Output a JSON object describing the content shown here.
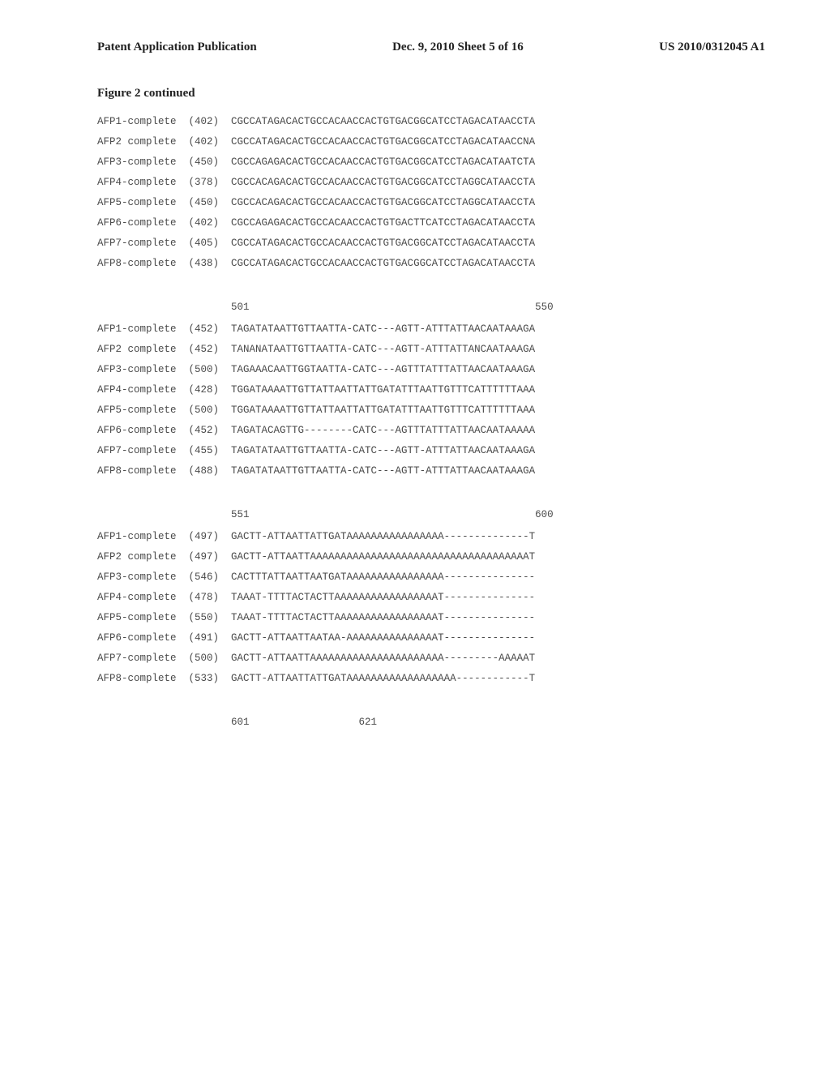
{
  "header": {
    "left": "Patent Application Publication",
    "center": "Dec. 9, 2010  Sheet 5 of 16",
    "right": "US 2010/0312045 A1"
  },
  "figure_title": "Figure 2 continued",
  "blocks": [
    {
      "ruler": "",
      "rows": [
        {
          "name": "AFP1-complete",
          "pos": "(402)",
          "seq": "CGCCATAGACACTGCCACAACCACTGTGACGGCATCCTAGACATAACCTA"
        },
        {
          "name": "AFP2 complete",
          "pos": "(402)",
          "seq": "CGCCATAGACACTGCCACAACCACTGTGACGGCATCCTAGACATAACCNA"
        },
        {
          "name": "AFP3-complete",
          "pos": "(450)",
          "seq": "CGCCAGAGACACTGCCACAACCACTGTGACGGCATCCTAGACATAATCTA"
        },
        {
          "name": "AFP4-complete",
          "pos": "(378)",
          "seq": "CGCCACAGACACTGCCACAACCACTGTGACGGCATCCTAGGCATAACCTA"
        },
        {
          "name": "AFP5-complete",
          "pos": "(450)",
          "seq": "CGCCACAGACACTGCCACAACCACTGTGACGGCATCCTAGGCATAACCTA"
        },
        {
          "name": "AFP6-complete",
          "pos": "(402)",
          "seq": "CGCCAGAGACACTGCCACAACCACTGTGACTTCATCCTAGACATAACCTA"
        },
        {
          "name": "AFP7-complete",
          "pos": "(405)",
          "seq": "CGCCATAGACACTGCCACAACCACTGTGACGGCATCCTAGACATAACCTA"
        },
        {
          "name": "AFP8-complete",
          "pos": "(438)",
          "seq": "CGCCATAGACACTGCCACAACCACTGTGACGGCATCCTAGACATAACCTA"
        }
      ]
    },
    {
      "ruler": "                      501                                               550",
      "rows": [
        {
          "name": "AFP1-complete",
          "pos": "(452)",
          "seq": "TAGATATAATTGTTAATTA-CATC---AGTT-ATTTATTAACAATAAAGA"
        },
        {
          "name": "AFP2 complete",
          "pos": "(452)",
          "seq": "TANANATAATTGTTAATTA-CATC---AGTT-ATTTATTANCAATAAAGA"
        },
        {
          "name": "AFP3-complete",
          "pos": "(500)",
          "seq": "TAGAAACAATTGGTAATTA-CATC---AGTTTATTTATTAACAATAAAGA"
        },
        {
          "name": "AFP4-complete",
          "pos": "(428)",
          "seq": "TGGATAAAATTGTTATTAATTATTGATATTTAATTGTTTCATTTTTTAAA"
        },
        {
          "name": "AFP5-complete",
          "pos": "(500)",
          "seq": "TGGATAAAATTGTTATTAATTATTGATATTTAATTGTTTCATTTTTTAAA"
        },
        {
          "name": "AFP6-complete",
          "pos": "(452)",
          "seq": "TAGATACAGTTG--------CATC---AGTTTATTTATTAACAATAAAAA"
        },
        {
          "name": "AFP7-complete",
          "pos": "(455)",
          "seq": "TAGATATAATTGTTAATTA-CATC---AGTT-ATTTATTAACAATAAAGA"
        },
        {
          "name": "AFP8-complete",
          "pos": "(488)",
          "seq": "TAGATATAATTGTTAATTA-CATC---AGTT-ATTTATTAACAATAAAGA"
        }
      ]
    },
    {
      "ruler": "                      551                                               600",
      "rows": [
        {
          "name": "AFP1-complete",
          "pos": "(497)",
          "seq": "GACTT-ATTAATTATTGATAAAAAAAAAAAAAAAA--------------T"
        },
        {
          "name": "AFP2 complete",
          "pos": "(497)",
          "seq": "GACTT-ATTAATTAAAAAAAAAAAAAAAAAAAAAAAAAAAAAAAAAAAAT"
        },
        {
          "name": "AFP3-complete",
          "pos": "(546)",
          "seq": "CACTTTATTAATTAATGATAAAAAAAAAAAAAAAA---------------"
        },
        {
          "name": "AFP4-complete",
          "pos": "(478)",
          "seq": "TAAAT-TTTTACTACTTAAAAAAAAAAAAAAAAAT---------------"
        },
        {
          "name": "AFP5-complete",
          "pos": "(550)",
          "seq": "TAAAT-TTTTACTACTTAAAAAAAAAAAAAAAAAT---------------"
        },
        {
          "name": "AFP6-complete",
          "pos": "(491)",
          "seq": "GACTT-ATTAATTAATAA-AAAAAAAAAAAAAAAT---------------"
        },
        {
          "name": "AFP7-complete",
          "pos": "(500)",
          "seq": "GACTT-ATTAATTAAAAAAAAAAAAAAAAAAAAAA---------AAAAAT"
        },
        {
          "name": "AFP8-complete",
          "pos": "(533)",
          "seq": "GACTT-ATTAATTATTGATAAAAAAAAAAAAAAAAAA------------T"
        }
      ]
    }
  ],
  "footer_ruler": "                      601                  621"
}
